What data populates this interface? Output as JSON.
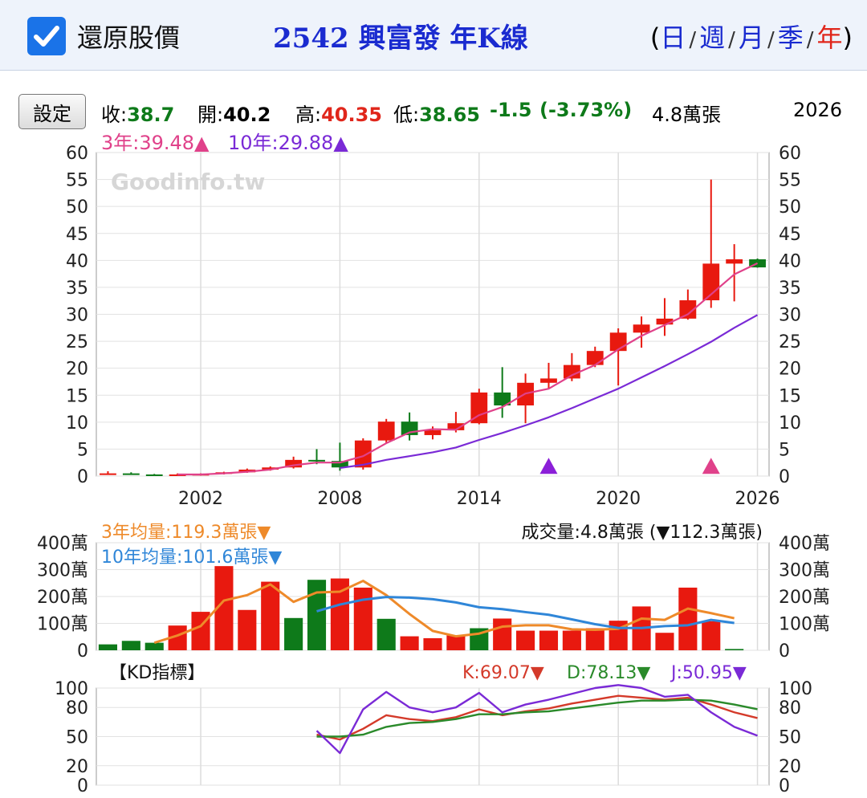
{
  "header": {
    "restore_label": "還原股價",
    "title": "2542 興富發 年K線",
    "open_paren": "(",
    "close_paren": ")",
    "periods": [
      "日",
      "週",
      "月",
      "季",
      "年"
    ],
    "active_period": "年"
  },
  "toolbar": {
    "settings_label": "設定"
  },
  "quote": {
    "close_label": "收:",
    "close": "38.7",
    "open_label": "開:",
    "open": "40.2",
    "high_label": "高:",
    "high": "40.35",
    "low_label": "低:",
    "low": "38.65",
    "change": "-1.5",
    "change_pct": "(-3.73%)",
    "volume": "4.8萬張",
    "year": "2026"
  },
  "ma_legend": {
    "ma3": "3年:39.48▲",
    "ma10": "10年:29.88▲"
  },
  "watermark": "Goodinfo.tw",
  "volume_legend": {
    "ma3": "3年均量:119.3萬張▼",
    "ma10": "10年均量:101.6萬張▼",
    "total": "成交量:4.8萬張 (▼112.3萬張)"
  },
  "kd_legend": {
    "title": "【KD指標】",
    "k": "K:69.07▼",
    "d": "D:78.13▼",
    "j": "J:50.95▼"
  },
  "colors": {
    "up": "#e8190f",
    "down": "#0e7a1a",
    "ma3": "#e0418a",
    "ma10": "#7a2ad6",
    "vol_ma3": "#ee8a2a",
    "vol_ma10": "#2f86d8",
    "k": "#d43a2a",
    "d": "#2a8a2a",
    "j": "#7a2ad6"
  },
  "chart_data": [
    {
      "type": "candlestick",
      "x_ticks": [
        2002,
        2008,
        2014,
        2020,
        2026
      ],
      "y_ticks": [
        0,
        5,
        10,
        15,
        20,
        25,
        30,
        35,
        40,
        45,
        50,
        55,
        60
      ],
      "ylim": [
        0,
        60
      ],
      "candles": [
        {
          "year": 1998,
          "open": 0.5,
          "high": 0.9,
          "low": 0.3,
          "close": 0.5
        },
        {
          "year": 1999,
          "open": 0.5,
          "high": 0.7,
          "low": 0.3,
          "close": 0.4
        },
        {
          "year": 2000,
          "open": 0.3,
          "high": 0.4,
          "low": 0.1,
          "close": 0.2
        },
        {
          "year": 2001,
          "open": 0.2,
          "high": 0.5,
          "low": 0.1,
          "close": 0.3
        },
        {
          "year": 2002,
          "open": 0.3,
          "high": 0.5,
          "low": 0.1,
          "close": 0.4
        },
        {
          "year": 2003,
          "open": 0.4,
          "high": 0.8,
          "low": 0.3,
          "close": 0.7
        },
        {
          "year": 2004,
          "open": 0.7,
          "high": 1.4,
          "low": 0.6,
          "close": 1.2
        },
        {
          "year": 2005,
          "open": 1.2,
          "high": 1.8,
          "low": 1.0,
          "close": 1.6
        },
        {
          "year": 2006,
          "open": 1.6,
          "high": 3.6,
          "low": 1.4,
          "close": 3.0
        },
        {
          "year": 2007,
          "open": 3.0,
          "high": 5.0,
          "low": 2.2,
          "close": 2.8
        },
        {
          "year": 2008,
          "open": 2.8,
          "high": 6.2,
          "low": 1.0,
          "close": 1.6
        },
        {
          "year": 2009,
          "open": 1.6,
          "high": 7.0,
          "low": 1.2,
          "close": 6.6
        },
        {
          "year": 2010,
          "open": 6.6,
          "high": 10.6,
          "low": 6.2,
          "close": 10.1
        },
        {
          "year": 2011,
          "open": 10.1,
          "high": 11.8,
          "low": 6.6,
          "close": 7.6
        },
        {
          "year": 2012,
          "open": 7.6,
          "high": 9.2,
          "low": 6.8,
          "close": 8.5
        },
        {
          "year": 2013,
          "open": 8.5,
          "high": 11.9,
          "low": 8.1,
          "close": 9.8
        },
        {
          "year": 2014,
          "open": 9.8,
          "high": 16.2,
          "low": 9.6,
          "close": 15.5
        },
        {
          "year": 2015,
          "open": 15.5,
          "high": 20.2,
          "low": 10.8,
          "close": 13.1
        },
        {
          "year": 2016,
          "open": 13.1,
          "high": 19.0,
          "low": 9.8,
          "close": 17.3
        },
        {
          "year": 2017,
          "open": 17.3,
          "high": 21.0,
          "low": 16.3,
          "close": 18.1
        },
        {
          "year": 2018,
          "open": 18.1,
          "high": 22.8,
          "low": 17.6,
          "close": 20.6
        },
        {
          "year": 2019,
          "open": 20.6,
          "high": 24.0,
          "low": 20.2,
          "close": 23.2
        },
        {
          "year": 2020,
          "open": 23.2,
          "high": 27.4,
          "low": 16.8,
          "close": 26.6
        },
        {
          "year": 2021,
          "open": 26.6,
          "high": 29.6,
          "low": 23.8,
          "close": 28.1
        },
        {
          "year": 2022,
          "open": 28.1,
          "high": 33.0,
          "low": 26.0,
          "close": 29.2
        },
        {
          "year": 2023,
          "open": 29.2,
          "high": 34.6,
          "low": 29.0,
          "close": 32.6
        },
        {
          "year": 2024,
          "open": 32.6,
          "high": 55.0,
          "low": 31.2,
          "close": 39.4
        },
        {
          "year": 2025,
          "open": 39.4,
          "high": 43.0,
          "low": 32.4,
          "close": 40.2
        },
        {
          "year": 2026,
          "open": 40.2,
          "high": 40.35,
          "low": 38.65,
          "close": 38.7
        }
      ],
      "ma3": [
        {
          "year": 2001,
          "value": 0.3
        },
        {
          "year": 2002,
          "value": 0.3
        },
        {
          "year": 2003,
          "value": 0.5
        },
        {
          "year": 2004,
          "value": 0.8
        },
        {
          "year": 2005,
          "value": 1.2
        },
        {
          "year": 2006,
          "value": 2.0
        },
        {
          "year": 2007,
          "value": 2.5
        },
        {
          "year": 2008,
          "value": 2.5
        },
        {
          "year": 2009,
          "value": 3.7
        },
        {
          "year": 2010,
          "value": 6.1
        },
        {
          "year": 2011,
          "value": 8.1
        },
        {
          "year": 2012,
          "value": 8.7
        },
        {
          "year": 2013,
          "value": 8.6
        },
        {
          "year": 2014,
          "value": 11.3
        },
        {
          "year": 2015,
          "value": 12.8
        },
        {
          "year": 2016,
          "value": 15.3
        },
        {
          "year": 2017,
          "value": 16.2
        },
        {
          "year": 2018,
          "value": 18.7
        },
        {
          "year": 2019,
          "value": 20.6
        },
        {
          "year": 2020,
          "value": 23.5
        },
        {
          "year": 2021,
          "value": 26.0
        },
        {
          "year": 2022,
          "value": 28.0
        },
        {
          "year": 2023,
          "value": 30.0
        },
        {
          "year": 2024,
          "value": 33.7
        },
        {
          "year": 2025,
          "value": 37.4
        },
        {
          "year": 2026,
          "value": 39.48
        }
      ],
      "ma10": [
        {
          "year": 2008,
          "value": 1.5
        },
        {
          "year": 2009,
          "value": 2.1
        },
        {
          "year": 2010,
          "value": 3.0
        },
        {
          "year": 2011,
          "value": 3.7
        },
        {
          "year": 2012,
          "value": 4.4
        },
        {
          "year": 2013,
          "value": 5.3
        },
        {
          "year": 2014,
          "value": 6.7
        },
        {
          "year": 2015,
          "value": 8.0
        },
        {
          "year": 2016,
          "value": 9.4
        },
        {
          "year": 2017,
          "value": 10.9
        },
        {
          "year": 2018,
          "value": 12.6
        },
        {
          "year": 2019,
          "value": 14.4
        },
        {
          "year": 2020,
          "value": 16.2
        },
        {
          "year": 2021,
          "value": 18.3
        },
        {
          "year": 2022,
          "value": 20.4
        },
        {
          "year": 2023,
          "value": 22.6
        },
        {
          "year": 2024,
          "value": 24.9
        },
        {
          "year": 2025,
          "value": 27.5
        },
        {
          "year": 2026,
          "value": 29.88
        }
      ],
      "markers": [
        {
          "year": 2017,
          "value": 1.0,
          "color": "#8b1fd8"
        },
        {
          "year": 2024,
          "value": 1.0,
          "color": "#e0418a"
        }
      ]
    },
    {
      "type": "bar",
      "y_ticks": [
        {
          "value": 0,
          "label": "0"
        },
        {
          "value": 100,
          "label": "100萬"
        },
        {
          "value": 200,
          "label": "200萬"
        },
        {
          "value": 300,
          "label": "300萬"
        },
        {
          "value": 400,
          "label": "400萬"
        }
      ],
      "ylim": [
        0,
        400
      ],
      "unit": "萬張",
      "volumes": [
        {
          "year": 1998,
          "value": 22,
          "dir": "down"
        },
        {
          "year": 1999,
          "value": 35,
          "dir": "down"
        },
        {
          "year": 2000,
          "value": 28,
          "dir": "down"
        },
        {
          "year": 2001,
          "value": 92,
          "dir": "up"
        },
        {
          "year": 2002,
          "value": 143,
          "dir": "up"
        },
        {
          "year": 2003,
          "value": 313,
          "dir": "up"
        },
        {
          "year": 2004,
          "value": 150,
          "dir": "up"
        },
        {
          "year": 2005,
          "value": 255,
          "dir": "up"
        },
        {
          "year": 2006,
          "value": 120,
          "dir": "down"
        },
        {
          "year": 2007,
          "value": 262,
          "dir": "down"
        },
        {
          "year": 2008,
          "value": 267,
          "dir": "up"
        },
        {
          "year": 2009,
          "value": 233,
          "dir": "up"
        },
        {
          "year": 2010,
          "value": 117,
          "dir": "down"
        },
        {
          "year": 2011,
          "value": 52,
          "dir": "up"
        },
        {
          "year": 2012,
          "value": 45,
          "dir": "up"
        },
        {
          "year": 2013,
          "value": 55,
          "dir": "up"
        },
        {
          "year": 2014,
          "value": 82,
          "dir": "down"
        },
        {
          "year": 2015,
          "value": 118,
          "dir": "up"
        },
        {
          "year": 2016,
          "value": 73,
          "dir": "up"
        },
        {
          "year": 2017,
          "value": 73,
          "dir": "up"
        },
        {
          "year": 2018,
          "value": 73,
          "dir": "up"
        },
        {
          "year": 2019,
          "value": 82,
          "dir": "up"
        },
        {
          "year": 2020,
          "value": 110,
          "dir": "up"
        },
        {
          "year": 2021,
          "value": 163,
          "dir": "up"
        },
        {
          "year": 2022,
          "value": 65,
          "dir": "up"
        },
        {
          "year": 2023,
          "value": 233,
          "dir": "up"
        },
        {
          "year": 2024,
          "value": 108,
          "dir": "up"
        },
        {
          "year": 2025,
          "value": 4.8,
          "dir": "down"
        }
      ],
      "ma3": [
        {
          "year": 2000,
          "value": 28
        },
        {
          "year": 2001,
          "value": 55
        },
        {
          "year": 2002,
          "value": 90
        },
        {
          "year": 2003,
          "value": 185
        },
        {
          "year": 2004,
          "value": 205
        },
        {
          "year": 2005,
          "value": 245
        },
        {
          "year": 2006,
          "value": 180
        },
        {
          "year": 2007,
          "value": 215
        },
        {
          "year": 2008,
          "value": 218
        },
        {
          "year": 2009,
          "value": 258
        },
        {
          "year": 2010,
          "value": 205
        },
        {
          "year": 2011,
          "value": 135
        },
        {
          "year": 2012,
          "value": 72
        },
        {
          "year": 2013,
          "value": 52
        },
        {
          "year": 2014,
          "value": 62
        },
        {
          "year": 2015,
          "value": 88
        },
        {
          "year": 2016,
          "value": 93
        },
        {
          "year": 2017,
          "value": 93
        },
        {
          "year": 2018,
          "value": 78
        },
        {
          "year": 2019,
          "value": 76
        },
        {
          "year": 2020,
          "value": 80
        },
        {
          "year": 2021,
          "value": 118
        },
        {
          "year": 2022,
          "value": 113
        },
        {
          "year": 2023,
          "value": 155
        },
        {
          "year": 2024,
          "value": 138
        },
        {
          "year": 2025,
          "value": 119.3
        }
      ],
      "ma10": [
        {
          "year": 2007,
          "value": 145
        },
        {
          "year": 2008,
          "value": 170
        },
        {
          "year": 2009,
          "value": 188
        },
        {
          "year": 2010,
          "value": 198
        },
        {
          "year": 2011,
          "value": 196
        },
        {
          "year": 2012,
          "value": 190
        },
        {
          "year": 2013,
          "value": 178
        },
        {
          "year": 2014,
          "value": 160
        },
        {
          "year": 2015,
          "value": 153
        },
        {
          "year": 2016,
          "value": 142
        },
        {
          "year": 2017,
          "value": 132
        },
        {
          "year": 2018,
          "value": 115
        },
        {
          "year": 2019,
          "value": 97
        },
        {
          "year": 2020,
          "value": 83
        },
        {
          "year": 2021,
          "value": 83
        },
        {
          "year": 2022,
          "value": 90
        },
        {
          "year": 2023,
          "value": 93
        },
        {
          "year": 2024,
          "value": 113
        },
        {
          "year": 2025,
          "value": 101.6
        }
      ]
    },
    {
      "type": "line",
      "title": "【KD指標】",
      "y_ticks": [
        0,
        20,
        50,
        80,
        100
      ],
      "ylim": [
        0,
        100
      ],
      "x": [
        2007,
        2008,
        2009,
        2010,
        2011,
        2012,
        2013,
        2014,
        2015,
        2016,
        2017,
        2018,
        2019,
        2020,
        2021,
        2022,
        2023,
        2024,
        2025,
        2026
      ],
      "series": [
        {
          "name": "K",
          "values": [
            52,
            47,
            58,
            72,
            68,
            66,
            70,
            78,
            72,
            76,
            79,
            84,
            88,
            92,
            90,
            88,
            90,
            83,
            75,
            69.07
          ]
        },
        {
          "name": "D",
          "values": [
            50,
            50,
            52,
            60,
            64,
            65,
            68,
            73,
            73,
            75,
            76,
            79,
            82,
            85,
            87,
            87,
            88,
            87,
            83,
            78.13
          ]
        },
        {
          "name": "J",
          "values": [
            56,
            33,
            78,
            96,
            80,
            75,
            80,
            95,
            75,
            83,
            88,
            94,
            100,
            103,
            100,
            91,
            93,
            75,
            60,
            50.95
          ]
        }
      ]
    }
  ]
}
